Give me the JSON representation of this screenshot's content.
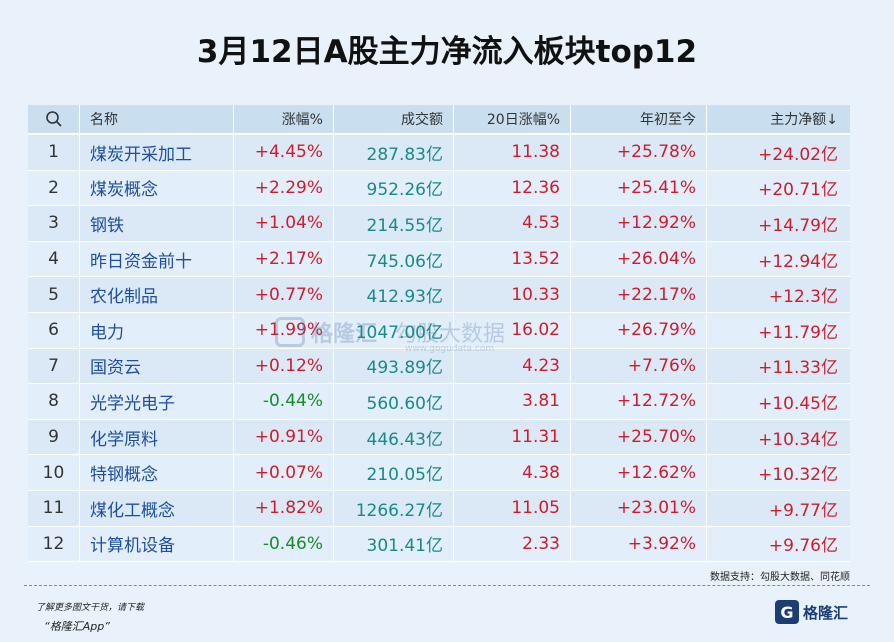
{
  "title": "3月12日A股主力净流入板块top12",
  "header": {
    "name": "名称",
    "change": "涨幅%",
    "volume": "成交额",
    "d20": "20日涨幅%",
    "ytd": "年初至今",
    "net": "主力净额↓"
  },
  "chart_data": {
    "type": "table",
    "columns": [
      "名称",
      "涨幅%",
      "成交额",
      "20日涨幅%",
      "年初至今",
      "主力净额↓"
    ],
    "rows": [
      {
        "rank": "1",
        "name": "煤炭开采加工",
        "change": "+4.45%",
        "volume": "287.83亿",
        "d20": "11.38",
        "ytd": "+25.78%",
        "net": "+24.02亿",
        "dir": "up"
      },
      {
        "rank": "2",
        "name": "煤炭概念",
        "change": "+2.29%",
        "volume": "952.26亿",
        "d20": "12.36",
        "ytd": "+25.41%",
        "net": "+20.71亿",
        "dir": "up"
      },
      {
        "rank": "3",
        "name": "钢铁",
        "change": "+1.04%",
        "volume": "214.55亿",
        "d20": "4.53",
        "ytd": "+12.92%",
        "net": "+14.79亿",
        "dir": "up"
      },
      {
        "rank": "4",
        "name": "昨日资金前十",
        "change": "+2.17%",
        "volume": "745.06亿",
        "d20": "13.52",
        "ytd": "+26.04%",
        "net": "+12.94亿",
        "dir": "up"
      },
      {
        "rank": "5",
        "name": "农化制品",
        "change": "+0.77%",
        "volume": "412.93亿",
        "d20": "10.33",
        "ytd": "+22.17%",
        "net": "+12.3亿",
        "dir": "up"
      },
      {
        "rank": "6",
        "name": "电力",
        "change": "+1.99%",
        "volume": "1047.00亿",
        "d20": "16.02",
        "ytd": "+26.79%",
        "net": "+11.79亿",
        "dir": "up"
      },
      {
        "rank": "7",
        "name": "国资云",
        "change": "+0.12%",
        "volume": "493.89亿",
        "d20": "4.23",
        "ytd": "+7.76%",
        "net": "+11.33亿",
        "dir": "up"
      },
      {
        "rank": "8",
        "name": "光学光电子",
        "change": "-0.44%",
        "volume": "560.60亿",
        "d20": "3.81",
        "ytd": "+12.72%",
        "net": "+10.45亿",
        "dir": "down"
      },
      {
        "rank": "9",
        "name": "化学原料",
        "change": "+0.91%",
        "volume": "446.43亿",
        "d20": "11.31",
        "ytd": "+25.70%",
        "net": "+10.34亿",
        "dir": "up"
      },
      {
        "rank": "10",
        "name": "特钢概念",
        "change": "+0.07%",
        "volume": "210.05亿",
        "d20": "4.38",
        "ytd": "+12.62%",
        "net": "+10.32亿",
        "dir": "up"
      },
      {
        "rank": "11",
        "name": "煤化工概念",
        "change": "+1.82%",
        "volume": "1266.27亿",
        "d20": "11.05",
        "ytd": "+23.01%",
        "net": "+9.77亿",
        "dir": "up"
      },
      {
        "rank": "12",
        "name": "计算机设备",
        "change": "-0.46%",
        "volume": "301.41亿",
        "d20": "2.33",
        "ytd": "+3.92%",
        "net": "+9.76亿",
        "dir": "down"
      }
    ]
  },
  "watermark": {
    "brand": "格隆汇",
    "data_brand": "勾股大数据",
    "url": "www.gogudata.com"
  },
  "footer": {
    "source": "数据支持：勾股大数据、同花顺",
    "promo_line1": "了解更多图文干货，请下载",
    "promo_line2": "“格隆汇App”",
    "brand_logo": "G",
    "brand_name": "格隆汇"
  },
  "colors": {
    "up": "#d21a2a",
    "down": "#1a8a2a",
    "name": "#1d4ea0",
    "volume": "#178a8a"
  }
}
